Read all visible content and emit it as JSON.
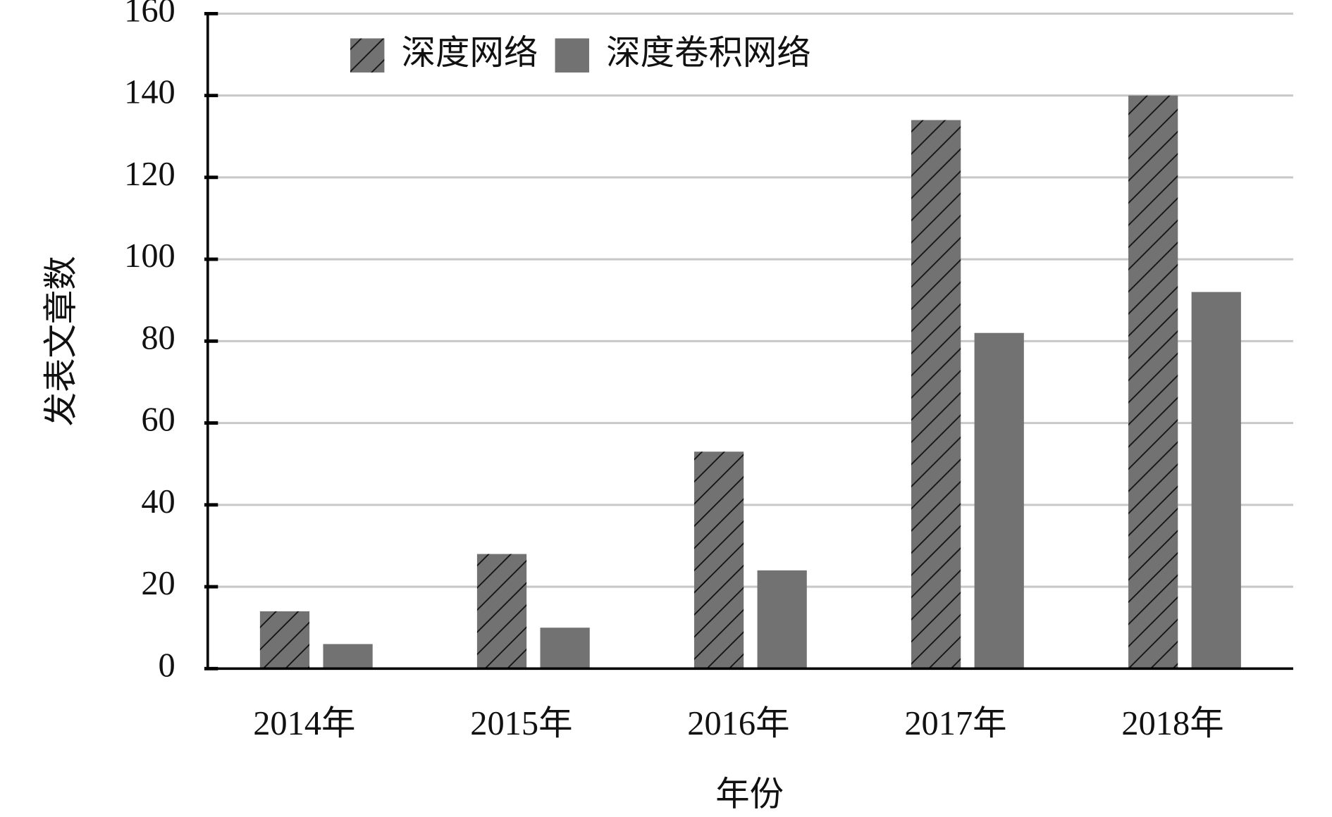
{
  "chart_data": {
    "type": "bar",
    "x_label": "年份",
    "y_label": "发表文章数",
    "categories": [
      "2014年",
      "2015年",
      "2016年",
      "2017年",
      "2018年"
    ],
    "series": [
      {
        "name": "深度网络",
        "color": "#727272",
        "hatch": true,
        "values": [
          14,
          28,
          53,
          134,
          140
        ]
      },
      {
        "name": "深度卷积网络",
        "color": "#727272",
        "hatch": false,
        "values": [
          6,
          10,
          24,
          82,
          92
        ]
      }
    ],
    "ylim": [
      0,
      160
    ],
    "yticks": [
      0,
      20,
      40,
      60,
      80,
      100,
      120,
      140,
      160
    ],
    "grid": true,
    "legend": "top"
  }
}
